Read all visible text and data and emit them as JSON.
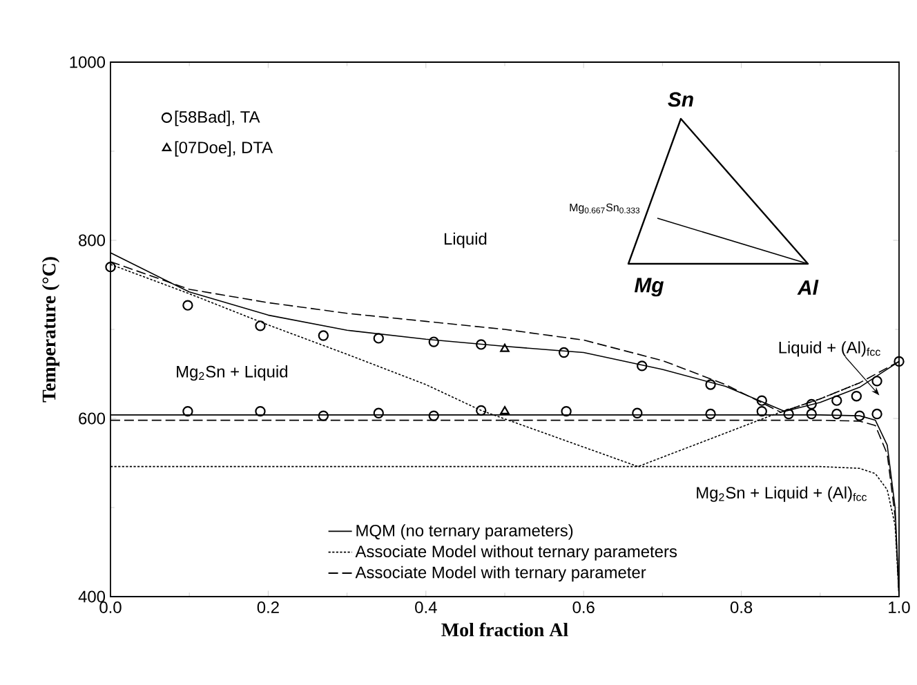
{
  "chart_data": {
    "type": "line",
    "xlabel": "Mol fraction Al",
    "ylabel": "Temperature (°C)",
    "xlim": [
      0,
      1
    ],
    "ylim": [
      400,
      1000
    ],
    "xticks": [
      {
        "value": 0,
        "label": "0.0"
      },
      {
        "value": 0.2,
        "label": "0.2"
      },
      {
        "value": 0.4,
        "label": "0.4"
      },
      {
        "value": 0.6,
        "label": "0.6"
      },
      {
        "value": 0.8,
        "label": "0.8"
      },
      {
        "value": 1,
        "label": "1.0"
      }
    ],
    "yticks": [
      400,
      600,
      800,
      1000
    ],
    "grid": false,
    "legend": "bottom",
    "series": [
      {
        "name": "MQM (no ternary parameters)",
        "line_style": "solid",
        "color": "#000000",
        "x": [
          0,
          0.1,
          0.2,
          0.3,
          0.4,
          0.5,
          0.6,
          0.7,
          0.78,
          0.855,
          0.9,
          0.95,
          1.0
        ],
        "values": [
          786,
          742,
          716,
          699,
          689,
          681,
          674,
          655,
          636,
          608,
          618,
          635,
          664
        ]
      },
      {
        "line_style": "solid",
        "color": "#000000",
        "x": [
          0,
          0.9,
          0.95,
          0.97,
          0.985,
          0.995,
          1.0
        ],
        "values": [
          604,
          604,
          603,
          598,
          570,
          500,
          400
        ]
      },
      {
        "name": "Associate Model without ternary parameters",
        "line_style": "dotted",
        "color": "#000000",
        "x": [
          0,
          0.1,
          0.2,
          0.3,
          0.4,
          0.47,
          0.669,
          0.84,
          0.9,
          0.95
        ],
        "values": [
          773,
          740,
          705,
          672,
          638,
          609,
          546,
          604,
          622,
          640
        ]
      },
      {
        "line_style": "dotted",
        "color": "#000000",
        "x": [
          0,
          0.9,
          0.95,
          0.97,
          0.985,
          0.995,
          1.0
        ],
        "values": [
          546,
          546,
          544,
          538,
          520,
          480,
          400
        ]
      },
      {
        "name": "Associate Model with ternary parameter",
        "line_style": "dashed",
        "color": "#000000",
        "x": [
          0,
          0.1,
          0.2,
          0.3,
          0.4,
          0.5,
          0.6,
          0.7,
          0.78,
          0.85,
          0.9,
          0.95,
          1.0
        ],
        "values": [
          776,
          745,
          730,
          718,
          709,
          700,
          688,
          665,
          638,
          607,
          622,
          640,
          664
        ]
      },
      {
        "line_style": "dashed",
        "color": "#000000",
        "x": [
          0,
          0.9,
          0.95,
          0.97,
          0.985,
          0.995,
          1.0
        ],
        "values": [
          598,
          598,
          597,
          592,
          560,
          490,
          400
        ]
      },
      {
        "name": "[58Bad], TA",
        "type": "scatter",
        "marker": "circle",
        "color": "#000000",
        "x": [
          0,
          0.098,
          0.19,
          0.27,
          0.34,
          0.41,
          0.47,
          0.575,
          0.674,
          0.761,
          0.826,
          0.889,
          0.921,
          0.946,
          0.972,
          1.0,
          0.098,
          0.19,
          0.27,
          0.34,
          0.41,
          0.47,
          0.578,
          0.668,
          0.761,
          0.826,
          0.86,
          0.889,
          0.921,
          0.95,
          0.972
        ],
        "values": [
          770,
          727,
          704,
          693,
          690,
          686,
          683,
          674,
          659,
          638,
          620,
          616,
          620,
          625,
          642,
          664,
          608,
          608,
          603,
          606,
          603,
          609,
          608,
          606,
          605,
          608,
          605,
          605,
          605,
          603,
          605
        ]
      },
      {
        "name": "[07Doe], DTA",
        "type": "scatter",
        "marker": "triangle",
        "color": "#000000",
        "x": [
          0.5,
          0.5
        ],
        "values": [
          678,
          608
        ]
      }
    ],
    "annotations": [
      "Liquid",
      "Mg$_{2}$Sn + Liquid",
      "Liquid + (Al)$_{fcc}$",
      "Mg$_{2}$Sn + Liquid + (Al)$_{fcc}$",
      "Sn",
      "Mg",
      "Al",
      "Mg$_{0.667}$Sn$_{0.333}$"
    ]
  }
}
